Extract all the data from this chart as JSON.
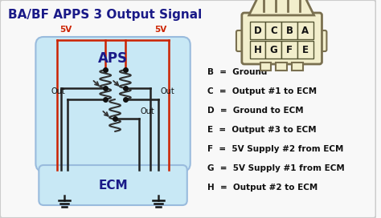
{
  "title": "BA/BF APPS 3 Output Signal",
  "background_color": "#f8f8f8",
  "outer_border_color": "#cccccc",
  "diagram_bg": "#c8e8f5",
  "aps_label": "APS",
  "ecm_label": "ECM",
  "ecm_bg": "#c8e8f5",
  "legend": [
    [
      "B",
      "Ground"
    ],
    [
      "C",
      "Output #1 to ECM"
    ],
    [
      "D",
      "Ground to ECM"
    ],
    [
      "E",
      "Output #3 to ECM"
    ],
    [
      "F",
      "5V Supply #2 from ECM"
    ],
    [
      "G",
      "5V Supply #1 from ECM"
    ],
    [
      "H",
      "Output #2 to ECM"
    ]
  ],
  "connector_letters_top": [
    "D",
    "C",
    "B",
    "A"
  ],
  "connector_letters_bot": [
    "H",
    "G",
    "F",
    "E"
  ],
  "red_color": "#cc2200",
  "blue_color": "#1133bb",
  "dark_color": "#111111",
  "wire_color_dark": "#222222",
  "title_color": "#1a1a88",
  "label_color": "#1a1a88",
  "fivev_color": "#cc2200"
}
